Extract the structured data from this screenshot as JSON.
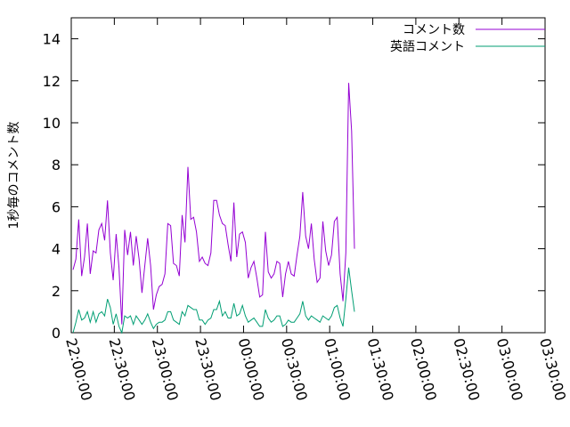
{
  "chart_data": {
    "type": "line",
    "ylabel": "1秒毎のコメント数",
    "ylim": [
      0,
      15
    ],
    "yticks": [
      "0",
      "2",
      "4",
      "6",
      "8",
      "10",
      "12",
      "14"
    ],
    "xticks": [
      "22:00:00",
      "22:30:00",
      "23:00:00",
      "23:30:00",
      "00:00:00",
      "00:30:00",
      "01:00:00",
      "01:30:00",
      "02:00:00",
      "02:30:00",
      "03:00:00",
      "03:30:00"
    ],
    "legend_position": "top-right",
    "grid": false,
    "series": [
      {
        "name": "コメント数",
        "color": "#9400d3",
        "values": [
          3.0,
          3.5,
          5.4,
          2.7,
          3.6,
          5.2,
          2.8,
          3.9,
          3.8,
          4.9,
          5.2,
          4.4,
          6.3,
          3.8,
          2.5,
          4.7,
          3.1,
          0.4,
          4.9,
          3.7,
          4.8,
          3.2,
          4.6,
          3.5,
          1.9,
          3.2,
          4.5,
          3.2,
          1.1,
          1.8,
          2.2,
          2.3,
          2.8,
          5.2,
          5.1,
          3.3,
          3.2,
          2.7,
          5.6,
          4.3,
          7.9,
          5.4,
          5.5,
          4.8,
          3.4,
          3.6,
          3.3,
          3.2,
          3.8,
          6.3,
          6.3,
          5.6,
          5.2,
          5.1,
          4.2,
          3.4,
          6.2,
          3.6,
          4.7,
          4.8,
          4.3,
          2.6,
          3.1,
          3.4,
          2.6,
          1.7,
          1.8,
          4.8,
          2.9,
          2.6,
          2.8,
          3.4,
          3.3,
          1.7,
          2.8,
          3.4,
          2.8,
          2.7,
          3.7,
          4.6,
          6.7,
          4.6,
          4.0,
          5.2,
          3.5,
          2.4,
          2.6,
          5.3,
          3.9,
          3.2,
          3.7,
          5.3,
          5.5,
          2.8,
          1.5,
          3.8,
          11.9,
          9.6,
          4.0
        ]
      },
      {
        "name": "英語コメント",
        "color": "#009e73",
        "values": [
          0.0,
          0.5,
          1.1,
          0.6,
          0.7,
          1.0,
          0.5,
          1.0,
          0.5,
          0.9,
          1.0,
          0.8,
          1.6,
          1.2,
          0.4,
          0.9,
          0.3,
          0.0,
          0.8,
          0.7,
          0.8,
          0.4,
          0.8,
          0.6,
          0.4,
          0.6,
          0.9,
          0.5,
          0.2,
          0.4,
          0.5,
          0.5,
          0.6,
          1.0,
          1.0,
          0.6,
          0.5,
          0.4,
          1.0,
          0.8,
          1.3,
          1.2,
          1.1,
          1.1,
          0.6,
          0.6,
          0.4,
          0.6,
          0.7,
          1.1,
          1.1,
          1.5,
          0.8,
          1.0,
          0.7,
          0.7,
          1.4,
          0.8,
          0.9,
          1.3,
          0.8,
          0.5,
          0.6,
          0.7,
          0.5,
          0.3,
          0.3,
          1.1,
          0.7,
          0.5,
          0.6,
          0.8,
          0.8,
          0.3,
          0.4,
          0.6,
          0.5,
          0.5,
          0.7,
          0.9,
          1.5,
          0.8,
          0.6,
          0.8,
          0.7,
          0.6,
          0.5,
          0.8,
          0.7,
          0.6,
          0.8,
          1.2,
          1.3,
          0.7,
          0.3,
          1.6,
          3.1,
          2.0,
          1.0
        ]
      }
    ]
  }
}
